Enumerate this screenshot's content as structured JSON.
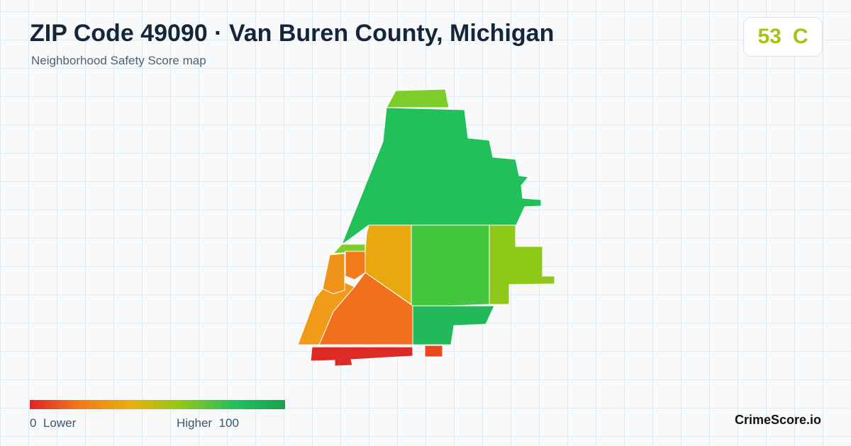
{
  "header": {
    "title": "ZIP Code 49090 · Van Buren County, Michigan",
    "subtitle": "Neighborhood Safety Score map"
  },
  "score": {
    "value": 53,
    "grade": "C"
  },
  "legend": {
    "min": 0,
    "min_label": "Lower",
    "max_label": "Higher",
    "max": 100
  },
  "brand": "CrimeScore.io"
}
